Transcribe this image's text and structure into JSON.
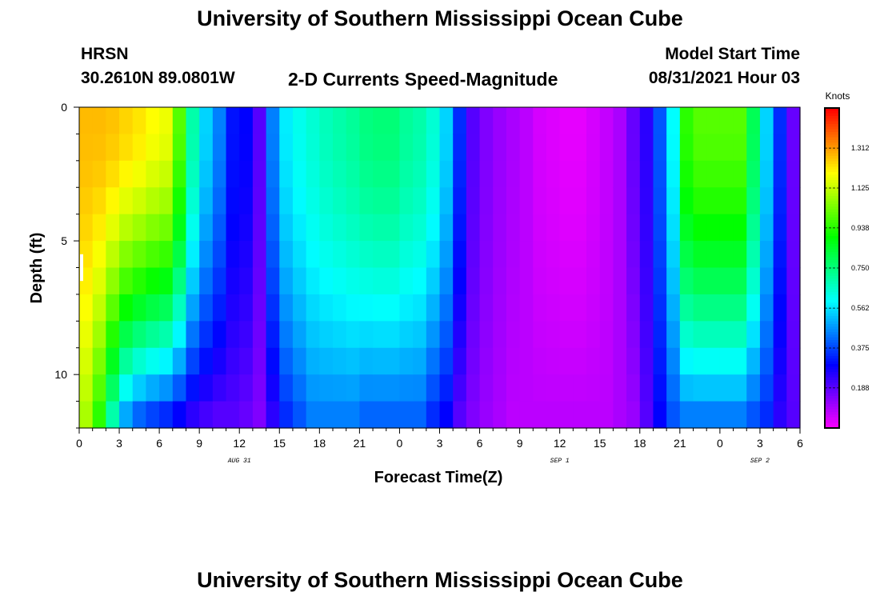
{
  "header": {
    "title_top": "University of Southern Mississippi Ocean Cube",
    "title_bottom": "University of Southern Mississippi Ocean Cube",
    "station": "HRSN",
    "coords": "30.2610N  89.0801W",
    "product": "2-D Currents Speed-Magnitude",
    "model_label": "Model Start Time",
    "model_time": "08/31/2021 Hour 03"
  },
  "colors": {
    "frame": "#000000",
    "background": "#ffffff"
  },
  "chart_data": {
    "type": "heatmap",
    "title": "2-D Currents Speed-Magnitude",
    "xlabel": "Forecast Time(Z)",
    "ylabel": "Depth (ft)",
    "x_range_hours": [
      0,
      54
    ],
    "y_range_ft": [
      0,
      12
    ],
    "x_ticks": [
      {
        "hour": 0,
        "label": "0"
      },
      {
        "hour": 3,
        "label": "3"
      },
      {
        "hour": 6,
        "label": "6"
      },
      {
        "hour": 9,
        "label": "9"
      },
      {
        "hour": 12,
        "label": "12"
      },
      {
        "hour": 15,
        "label": "15"
      },
      {
        "hour": 18,
        "label": "18"
      },
      {
        "hour": 21,
        "label": "21"
      },
      {
        "hour": 24,
        "label": "0"
      },
      {
        "hour": 27,
        "label": "3"
      },
      {
        "hour": 30,
        "label": "6"
      },
      {
        "hour": 33,
        "label": "9"
      },
      {
        "hour": 36,
        "label": "12"
      },
      {
        "hour": 39,
        "label": "15"
      },
      {
        "hour": 42,
        "label": "18"
      },
      {
        "hour": 45,
        "label": "21"
      },
      {
        "hour": 48,
        "label": "0"
      },
      {
        "hour": 51,
        "label": "3"
      },
      {
        "hour": 54,
        "label": "6"
      }
    ],
    "date_labels": [
      {
        "hour": 12,
        "label": "AUG 31"
      },
      {
        "hour": 36,
        "label": "SEP 1"
      },
      {
        "hour": 51,
        "label": "SEP 2"
      }
    ],
    "y_ticks": [
      {
        "depth": 0,
        "label": "0"
      },
      {
        "depth": 5,
        "label": "5"
      },
      {
        "depth": 10,
        "label": "10"
      }
    ],
    "colorbar": {
      "title": "Knots",
      "range": [
        0,
        1.5
      ],
      "ticks": [
        {
          "value": 1.312,
          "label": "1.312"
        },
        {
          "value": 1.125,
          "label": "1.125"
        },
        {
          "value": 0.938,
          "label": "0.938"
        },
        {
          "value": 0.75,
          "label": "0.750"
        },
        {
          "value": 0.562,
          "label": "0.562"
        },
        {
          "value": 0.375,
          "label": "0.375"
        },
        {
          "value": 0.188,
          "label": "0.188"
        }
      ]
    },
    "columns": 54,
    "rows": 12,
    "surface_speed_by_hour": [
      1.28,
      1.28,
      1.27,
      1.25,
      1.23,
      1.2,
      1.18,
      1.0,
      0.7,
      0.55,
      0.45,
      0.32,
      0.3,
      0.2,
      0.45,
      0.58,
      0.62,
      0.65,
      0.68,
      0.7,
      0.72,
      0.75,
      0.76,
      0.76,
      0.72,
      0.7,
      0.65,
      0.55,
      0.35,
      0.2,
      0.15,
      0.12,
      0.1,
      0.08,
      0.05,
      0.04,
      0.03,
      0.03,
      0.05,
      0.07,
      0.1,
      0.18,
      0.25,
      0.4,
      0.6,
      0.95,
      1.0,
      1.0,
      1.0,
      1.0,
      0.8,
      0.55,
      0.35,
      0.18
    ],
    "bottom_speed_by_hour": [
      1.1,
      0.95,
      0.7,
      0.5,
      0.42,
      0.38,
      0.35,
      0.3,
      0.25,
      0.22,
      0.2,
      0.2,
      0.18,
      0.15,
      0.25,
      0.35,
      0.4,
      0.45,
      0.45,
      0.45,
      0.45,
      0.42,
      0.42,
      0.42,
      0.42,
      0.42,
      0.35,
      0.3,
      0.2,
      0.15,
      0.12,
      0.1,
      0.08,
      0.08,
      0.08,
      0.08,
      0.08,
      0.08,
      0.08,
      0.08,
      0.1,
      0.12,
      0.2,
      0.3,
      0.4,
      0.45,
      0.45,
      0.45,
      0.45,
      0.45,
      0.4,
      0.35,
      0.25,
      0.2
    ],
    "annotations": [
      {
        "type": "gap",
        "hour": 0,
        "depth_from": 5.5,
        "depth_to": 6.5
      }
    ]
  }
}
